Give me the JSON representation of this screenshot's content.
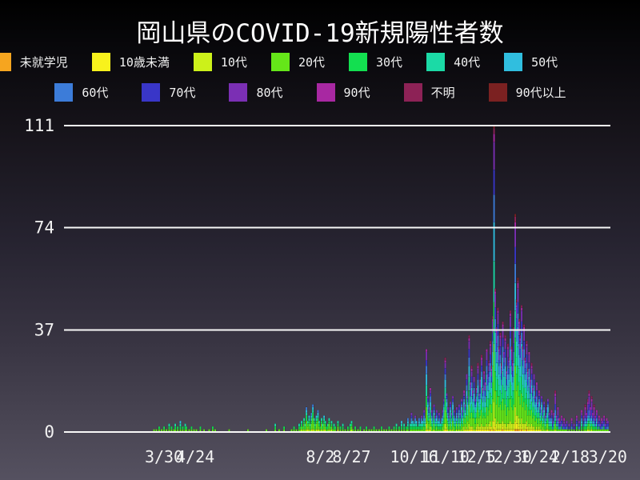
{
  "title": "岡山県のCOVID-19新規陽性者数",
  "chart_data": {
    "type": "bar",
    "stacked": true,
    "title": "岡山県のCOVID-19新規陽性者数",
    "xlabel": "",
    "ylabel": "",
    "grid": true,
    "gridline_color": "#f8f8f8",
    "text_color": "#f2f2f2",
    "legend_position": "top",
    "legend_rows": [
      7,
      6
    ],
    "series": [
      {
        "key": "pre",
        "label": "未就学児",
        "color": "#F6A51F"
      },
      {
        "key": "u10",
        "label": "10歳未満",
        "color": "#F8F21C"
      },
      {
        "key": "t10",
        "label": "10代",
        "color": "#CCF11A"
      },
      {
        "key": "t20",
        "label": "20代",
        "color": "#65E619"
      },
      {
        "key": "t30",
        "label": "30代",
        "color": "#13DF50"
      },
      {
        "key": "t40",
        "label": "40代",
        "color": "#1BDAA6"
      },
      {
        "key": "t50",
        "label": "50代",
        "color": "#30BEDF"
      },
      {
        "key": "t60",
        "label": "60代",
        "color": "#3C7CD9"
      },
      {
        "key": "t70",
        "label": "70代",
        "color": "#3936C8"
      },
      {
        "key": "t80",
        "label": "80代",
        "color": "#7B2FB4"
      },
      {
        "key": "t90",
        "label": "90代",
        "color": "#A828A2"
      },
      {
        "key": "unk",
        "label": "不明",
        "color": "#8D2256"
      },
      {
        "key": "o90",
        "label": "90代以上",
        "color": "#7B2121"
      }
    ],
    "ylim": [
      0,
      111
    ],
    "yticks": [
      0,
      37,
      74,
      111
    ],
    "x_domain": {
      "origin_date": "2020-03-22",
      "dmin": -72,
      "dmax": 365
    },
    "xticks": [
      {
        "d": 8,
        "label": "3/30"
      },
      {
        "d": 33,
        "label": "4/24"
      },
      {
        "d": 133,
        "label": "8/2"
      },
      {
        "d": 158,
        "label": "8/27"
      },
      {
        "d": 208,
        "label": "10/16"
      },
      {
        "d": 233,
        "label": "11/10"
      },
      {
        "d": 258,
        "label": "12/5"
      },
      {
        "d": 283,
        "label": "12/30"
      },
      {
        "d": 308,
        "label": "1/24"
      },
      {
        "d": 333,
        "label": "2/18"
      },
      {
        "d": 363,
        "label": "3/20"
      }
    ],
    "mix_periods": [
      {
        "until": 108,
        "mix": "spring"
      },
      {
        "until": 190,
        "mix": "summer"
      },
      {
        "until": 318,
        "mix": "winter"
      },
      {
        "until": 366,
        "mix": "late"
      }
    ],
    "mixes": {
      "spring": {
        "t10": 0.04,
        "t20": 0.22,
        "t30": 0.16,
        "t40": 0.14,
        "t50": 0.14,
        "t60": 0.12,
        "t70": 0.1,
        "t80": 0.05,
        "t90": 0.02,
        "unk": 0.01
      },
      "summer": {
        "pre": 0.02,
        "u10": 0.04,
        "t10": 0.1,
        "t20": 0.34,
        "t30": 0.18,
        "t40": 0.12,
        "t50": 0.1,
        "t60": 0.06,
        "t70": 0.03,
        "t80": 0.01
      },
      "winter": {
        "pre": 0.01,
        "u10": 0.03,
        "t10": 0.06,
        "t20": 0.19,
        "t30": 0.13,
        "t40": 0.13,
        "t50": 0.13,
        "t60": 0.09,
        "t70": 0.08,
        "t80": 0.09,
        "t90": 0.03,
        "unk": 0.02,
        "o90": 0.01
      },
      "late": {
        "u10": 0.02,
        "t10": 0.04,
        "t20": 0.1,
        "t30": 0.08,
        "t40": 0.08,
        "t50": 0.08,
        "t60": 0.1,
        "t70": 0.14,
        "t80": 0.18,
        "t90": 0.1,
        "unk": 0.06,
        "o90": 0.02
      }
    },
    "daily_totals": [
      [
        0,
        1
      ],
      [
        2,
        1
      ],
      [
        4,
        2
      ],
      [
        6,
        1
      ],
      [
        8,
        2
      ],
      [
        10,
        1
      ],
      [
        12,
        3
      ],
      [
        14,
        2
      ],
      [
        16,
        1
      ],
      [
        17,
        3
      ],
      [
        19,
        2
      ],
      [
        21,
        4
      ],
      [
        23,
        2
      ],
      [
        25,
        3
      ],
      [
        26,
        2
      ],
      [
        28,
        1
      ],
      [
        30,
        2
      ],
      [
        32,
        1
      ],
      [
        34,
        1
      ],
      [
        37,
        2
      ],
      [
        40,
        1
      ],
      [
        44,
        1
      ],
      [
        47,
        2
      ],
      [
        49,
        1
      ],
      [
        60,
        1
      ],
      [
        75,
        1
      ],
      [
        90,
        1
      ],
      [
        97,
        3
      ],
      [
        100,
        1
      ],
      [
        104,
        2
      ],
      [
        110,
        1
      ],
      [
        112,
        2
      ],
      [
        114,
        1
      ],
      [
        116,
        3
      ],
      [
        117,
        2
      ],
      [
        118,
        4
      ],
      [
        119,
        2
      ],
      [
        120,
        5
      ],
      [
        121,
        3
      ],
      [
        122,
        9
      ],
      [
        123,
        4
      ],
      [
        124,
        6
      ],
      [
        125,
        3
      ],
      [
        126,
        7
      ],
      [
        127,
        10
      ],
      [
        128,
        5
      ],
      [
        129,
        3
      ],
      [
        130,
        6
      ],
      [
        131,
        8
      ],
      [
        132,
        4
      ],
      [
        133,
        2
      ],
      [
        134,
        5
      ],
      [
        135,
        3
      ],
      [
        136,
        6
      ],
      [
        137,
        4
      ],
      [
        138,
        2
      ],
      [
        139,
        3
      ],
      [
        140,
        5
      ],
      [
        141,
        2
      ],
      [
        142,
        4
      ],
      [
        143,
        1
      ],
      [
        144,
        3
      ],
      [
        145,
        2
      ],
      [
        147,
        4
      ],
      [
        149,
        2
      ],
      [
        151,
        3
      ],
      [
        153,
        1
      ],
      [
        155,
        2
      ],
      [
        157,
        3
      ],
      [
        158,
        4
      ],
      [
        159,
        1
      ],
      [
        161,
        2
      ],
      [
        163,
        1
      ],
      [
        165,
        2
      ],
      [
        168,
        1
      ],
      [
        170,
        2
      ],
      [
        172,
        1
      ],
      [
        174,
        1
      ],
      [
        176,
        2
      ],
      [
        178,
        1
      ],
      [
        180,
        1
      ],
      [
        182,
        2
      ],
      [
        184,
        1
      ],
      [
        186,
        1
      ],
      [
        188,
        2
      ],
      [
        190,
        1
      ],
      [
        192,
        2
      ],
      [
        194,
        3
      ],
      [
        196,
        2
      ],
      [
        198,
        4
      ],
      [
        200,
        3
      ],
      [
        202,
        2
      ],
      [
        203,
        5
      ],
      [
        205,
        3
      ],
      [
        206,
        7
      ],
      [
        207,
        4
      ],
      [
        208,
        3
      ],
      [
        209,
        6
      ],
      [
        210,
        4
      ],
      [
        211,
        2
      ],
      [
        212,
        5
      ],
      [
        213,
        3
      ],
      [
        214,
        6
      ],
      [
        215,
        4
      ],
      [
        216,
        8
      ],
      [
        217,
        5
      ],
      [
        218,
        30
      ],
      [
        219,
        13
      ],
      [
        220,
        9
      ],
      [
        221,
        16
      ],
      [
        222,
        8
      ],
      [
        223,
        5
      ],
      [
        224,
        10
      ],
      [
        225,
        6
      ],
      [
        226,
        8
      ],
      [
        227,
        4
      ],
      [
        228,
        7
      ],
      [
        229,
        3
      ],
      [
        230,
        5
      ],
      [
        231,
        8
      ],
      [
        232,
        12
      ],
      [
        233,
        27
      ],
      [
        234,
        14
      ],
      [
        235,
        9
      ],
      [
        236,
        6
      ],
      [
        237,
        11
      ],
      [
        238,
        7
      ],
      [
        239,
        13
      ],
      [
        240,
        8
      ],
      [
        241,
        5
      ],
      [
        242,
        9
      ],
      [
        243,
        6
      ],
      [
        244,
        10
      ],
      [
        245,
        7
      ],
      [
        246,
        12
      ],
      [
        247,
        8
      ],
      [
        248,
        15
      ],
      [
        249,
        10
      ],
      [
        250,
        21
      ],
      [
        251,
        13
      ],
      [
        252,
        35
      ],
      [
        253,
        18
      ],
      [
        254,
        24
      ],
      [
        255,
        15
      ],
      [
        256,
        20
      ],
      [
        257,
        12
      ],
      [
        258,
        16
      ],
      [
        259,
        25
      ],
      [
        260,
        14
      ],
      [
        261,
        19
      ],
      [
        262,
        28
      ],
      [
        263,
        16
      ],
      [
        264,
        22
      ],
      [
        265,
        18
      ],
      [
        266,
        30
      ],
      [
        267,
        21
      ],
      [
        268,
        26
      ],
      [
        269,
        33
      ],
      [
        270,
        24
      ],
      [
        271,
        42
      ],
      [
        272,
        111
      ],
      [
        273,
        52
      ],
      [
        274,
        38
      ],
      [
        275,
        45
      ],
      [
        276,
        31
      ],
      [
        277,
        36
      ],
      [
        278,
        25
      ],
      [
        279,
        40
      ],
      [
        280,
        29
      ],
      [
        281,
        35
      ],
      [
        282,
        22
      ],
      [
        283,
        32
      ],
      [
        284,
        27
      ],
      [
        285,
        44
      ],
      [
        286,
        31
      ],
      [
        287,
        26
      ],
      [
        288,
        38
      ],
      [
        289,
        79
      ],
      [
        290,
        48
      ],
      [
        291,
        56
      ],
      [
        292,
        41
      ],
      [
        293,
        35
      ],
      [
        294,
        46
      ],
      [
        295,
        31
      ],
      [
        296,
        39
      ],
      [
        297,
        27
      ],
      [
        298,
        33
      ],
      [
        299,
        23
      ],
      [
        300,
        29
      ],
      [
        301,
        19
      ],
      [
        302,
        25
      ],
      [
        303,
        16
      ],
      [
        304,
        21
      ],
      [
        305,
        13
      ],
      [
        306,
        18
      ],
      [
        307,
        11
      ],
      [
        308,
        15
      ],
      [
        309,
        9
      ],
      [
        310,
        13
      ],
      [
        311,
        8
      ],
      [
        312,
        11
      ],
      [
        313,
        6
      ],
      [
        314,
        9
      ],
      [
        315,
        12
      ],
      [
        316,
        7
      ],
      [
        317,
        5
      ],
      [
        318,
        8
      ],
      [
        319,
        4
      ],
      [
        320,
        7
      ],
      [
        321,
        15
      ],
      [
        322,
        6
      ],
      [
        323,
        9
      ],
      [
        324,
        5
      ],
      [
        325,
        4
      ],
      [
        326,
        6
      ],
      [
        327,
        3
      ],
      [
        328,
        5
      ],
      [
        329,
        3
      ],
      [
        330,
        4
      ],
      [
        332,
        3
      ],
      [
        334,
        5
      ],
      [
        336,
        3
      ],
      [
        338,
        6
      ],
      [
        340,
        4
      ],
      [
        342,
        8
      ],
      [
        344,
        6
      ],
      [
        345,
        10
      ],
      [
        346,
        7
      ],
      [
        347,
        12
      ],
      [
        348,
        15
      ],
      [
        349,
        9
      ],
      [
        350,
        13
      ],
      [
        351,
        7
      ],
      [
        352,
        10
      ],
      [
        353,
        6
      ],
      [
        354,
        8
      ],
      [
        355,
        4
      ],
      [
        356,
        6
      ],
      [
        357,
        3
      ],
      [
        358,
        5
      ],
      [
        359,
        4
      ],
      [
        360,
        6
      ],
      [
        361,
        3
      ],
      [
        362,
        5
      ],
      [
        363,
        4
      ]
    ]
  }
}
